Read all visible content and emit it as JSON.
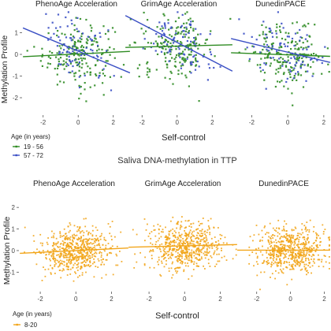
{
  "figure": {
    "top_ylabel": "Methylation Profile",
    "bottom_title": "Saliva DNA-methylation in TTP",
    "bottom_ylabel": "Methylation Profile",
    "top_xlabel": "Self-control",
    "bottom_xlabel": "Self-control",
    "top_legend_title": "Age (in years)",
    "bottom_legend_title": "Age (in years)"
  },
  "chart_data": [
    {
      "type": "scatter",
      "title": "PhenoAge Acceleration",
      "xlabel": "Self-control",
      "ylabel": "Methylation Profile",
      "x_ticks": [
        -2,
        0,
        2
      ],
      "y_ticks": [
        -2,
        -1,
        0,
        1
      ],
      "xlim": [
        -3.2,
        3.0
      ],
      "ylim": [
        -2.8,
        2.0
      ],
      "grid": false,
      "legend": "bottom-left",
      "series": [
        {
          "name": "19 - 56",
          "color": "#2e8b22",
          "n": 190,
          "trend": {
            "slope": 0.04,
            "intercept": 0.02
          },
          "x_sd": 1.0,
          "y_sd": 0.72
        },
        {
          "name": "57 - 72",
          "color": "#3a4fc4",
          "n": 90,
          "trend": {
            "slope": -0.34,
            "intercept": 0.15
          },
          "x_sd": 1.0,
          "y_sd": 0.72
        }
      ]
    },
    {
      "type": "scatter",
      "title": "GrimAge Acceleration",
      "xlabel": "Self-control",
      "ylabel": "Methylation Profile",
      "x_ticks": [
        -2,
        0,
        2
      ],
      "y_ticks": [
        -2,
        -1,
        0,
        1
      ],
      "xlim": [
        -3.0,
        3.2
      ],
      "ylim": [
        -2.8,
        2.0
      ],
      "grid": false,
      "series": [
        {
          "name": "19 - 56",
          "color": "#2e8b22",
          "n": 190,
          "trend": {
            "slope": 0.02,
            "intercept": 0.38
          },
          "x_sd": 1.0,
          "y_sd": 0.72
        },
        {
          "name": "57 - 72",
          "color": "#3a4fc4",
          "n": 90,
          "trend": {
            "slope": -0.42,
            "intercept": 0.55
          },
          "x_sd": 1.0,
          "y_sd": 0.72
        }
      ]
    },
    {
      "type": "scatter",
      "title": "DunedinPACE",
      "xlabel": "Self-control",
      "ylabel": "Methylation Profile",
      "x_ticks": [
        -2,
        0,
        2
      ],
      "y_ticks": [
        -2,
        -1,
        0,
        1
      ],
      "xlim": [
        -3.2,
        2.4
      ],
      "ylim": [
        -2.8,
        2.0
      ],
      "grid": false,
      "series": [
        {
          "name": "19 - 56",
          "color": "#2e8b22",
          "n": 190,
          "trend": {
            "slope": -0.03,
            "intercept": -0.02
          },
          "x_sd": 1.0,
          "y_sd": 0.72
        },
        {
          "name": "57 - 72",
          "color": "#3a4fc4",
          "n": 90,
          "trend": {
            "slope": -0.2,
            "intercept": 0.1
          },
          "x_sd": 1.0,
          "y_sd": 0.72
        }
      ]
    },
    {
      "type": "scatter",
      "title": "PhenoAge Acceleration",
      "xlabel": "Self-control",
      "ylabel": "Methylation Profile",
      "x_ticks": [
        -2,
        0,
        2
      ],
      "y_ticks": [
        -1,
        0,
        1,
        2
      ],
      "xlim": [
        -3.2,
        3.0
      ],
      "ylim": [
        -1.9,
        2.7
      ],
      "grid": false,
      "legend": "bottom-left",
      "series": [
        {
          "name": "8-20",
          "color": "#f2a51a",
          "n": 600,
          "trend": {
            "slope": 0.04,
            "intercept": 0.0
          },
          "x_sd": 1.0,
          "y_sd": 0.55
        }
      ]
    },
    {
      "type": "scatter",
      "title": "GrimAge Acceleration",
      "xlabel": "Self-control",
      "ylabel": "Methylation Profile",
      "x_ticks": [
        -2,
        0,
        2
      ],
      "y_ticks": [
        -1,
        0,
        1,
        2
      ],
      "xlim": [
        -3.2,
        3.0
      ],
      "ylim": [
        -1.9,
        2.7
      ],
      "grid": false,
      "series": [
        {
          "name": "8-20",
          "color": "#f2a51a",
          "n": 600,
          "trend": {
            "slope": 0.02,
            "intercept": 0.22
          },
          "x_sd": 1.0,
          "y_sd": 0.55
        }
      ]
    },
    {
      "type": "scatter",
      "title": "DunedinPACE",
      "xlabel": "Self-control",
      "ylabel": "Methylation Profile",
      "x_ticks": [
        -2,
        0,
        2
      ],
      "y_ticks": [
        -1,
        0,
        1,
        2
      ],
      "xlim": [
        -3.2,
        2.4
      ],
      "ylim": [
        -1.9,
        2.7
      ],
      "grid": false,
      "series": [
        {
          "name": "8-20",
          "color": "#f2a51a",
          "n": 600,
          "trend": {
            "slope": 0.0,
            "intercept": 0.02
          },
          "x_sd": 1.0,
          "y_sd": 0.55
        }
      ]
    }
  ]
}
